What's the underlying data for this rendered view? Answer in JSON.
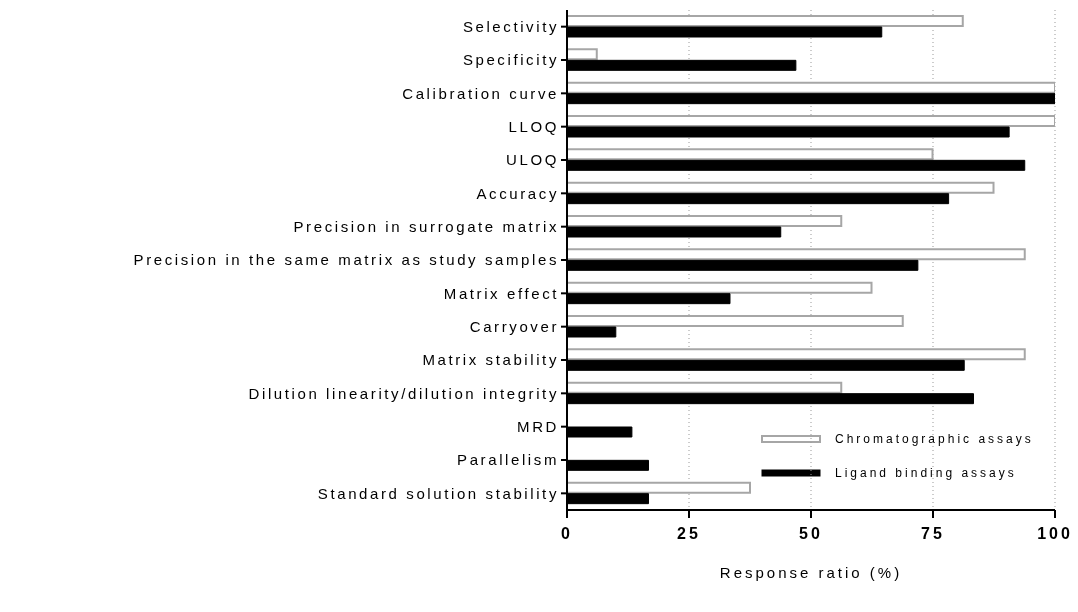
{
  "chart_data": {
    "type": "bar",
    "orientation": "horizontal",
    "categories": [
      "Selectivity",
      "Specificity",
      "Calibration curve",
      "LLOQ",
      "ULOQ",
      "Accuracy",
      "Precision in surrogate matrix",
      "Precision in the same matrix as study samples",
      "Matrix effect",
      "Carryover",
      "Matrix stability",
      "Dilution linearity/dilution integrity",
      "MRD",
      "Parallelism",
      "Standard solution stability"
    ],
    "series": [
      {
        "name": "Chromatographic assays",
        "color": "#a6a6a6",
        "values": [
          81.1,
          6.1,
          100,
          100,
          74.9,
          87.4,
          56.2,
          93.8,
          62.4,
          68.8,
          93.8,
          56.2,
          null,
          null,
          37.5
        ]
      },
      {
        "name": "Ligand binding assays",
        "color": "#000000",
        "values": [
          64.5,
          46.9,
          100,
          90.6,
          93.8,
          78.2,
          43.8,
          71.9,
          33.4,
          10.0,
          81.4,
          83.3,
          13.3,
          16.7,
          16.7
        ]
      }
    ],
    "xlim": [
      0,
      100
    ],
    "xticks": [
      0,
      25,
      50,
      75,
      100
    ],
    "xlabel": "Response ratio (%)",
    "grid": "x",
    "legend": "bottom right"
  }
}
